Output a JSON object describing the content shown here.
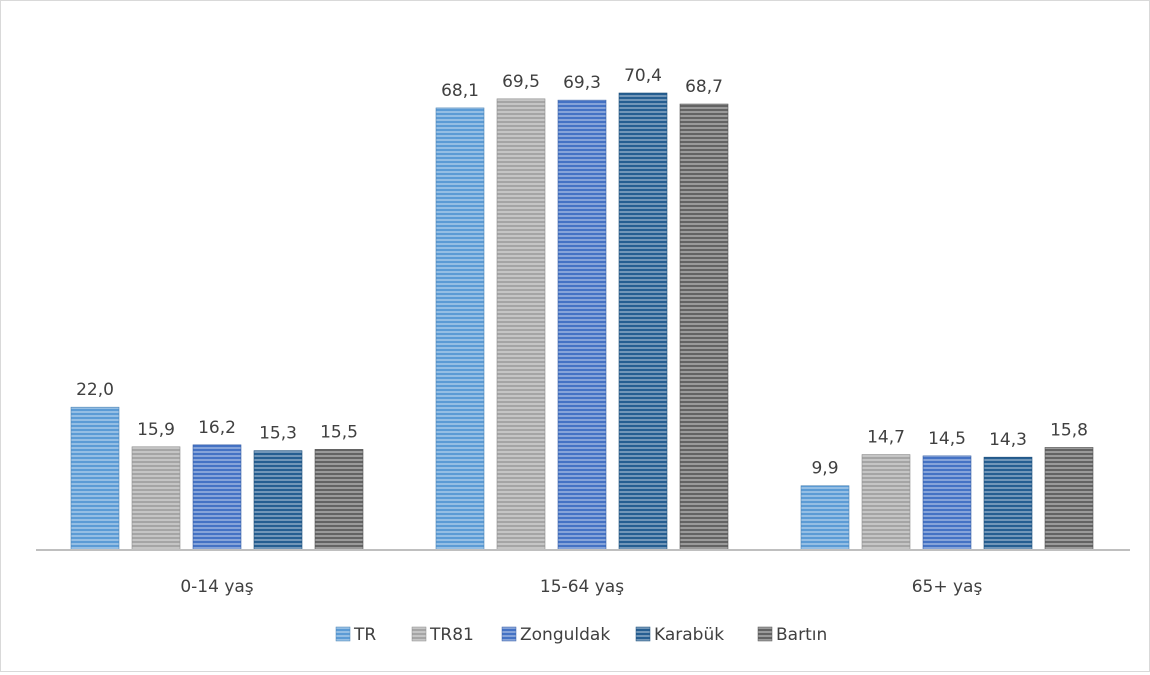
{
  "chart_data": {
    "type": "bar",
    "title": "",
    "xlabel": "",
    "ylabel": "",
    "categories": [
      "0-14 yaş",
      "15-64 yaş",
      "65+ yaş"
    ],
    "series": [
      {
        "name": "TR",
        "values": [
          22.0,
          68.1,
          9.9
        ],
        "labels": [
          "22,0",
          "68,1",
          "9,9"
        ],
        "color": "#5b9bd5",
        "pattern": "light-blue-stripes"
      },
      {
        "name": "TR81",
        "values": [
          15.9,
          69.5,
          14.7
        ],
        "labels": [
          "15,9",
          "69,5",
          "14,7"
        ],
        "color": "#a5a5a5",
        "pattern": "gray-stripes"
      },
      {
        "name": "Zonguldak",
        "values": [
          16.2,
          69.3,
          14.5
        ],
        "labels": [
          "16,2",
          "69,3",
          "14,5"
        ],
        "color": "#4472c4",
        "pattern": "blue-stripes"
      },
      {
        "name": "Karabük",
        "values": [
          15.3,
          70.4,
          14.3
        ],
        "labels": [
          "15,3",
          "70,4",
          "14,3"
        ],
        "color": "#255e91",
        "pattern": "dark-blue-stripes"
      },
      {
        "name": "Bartın",
        "values": [
          15.5,
          68.7,
          15.8
        ],
        "labels": [
          "15,5",
          "68,7",
          "15,8"
        ],
        "color": "#636363",
        "pattern": "dark-gray-stripes"
      }
    ],
    "ylim": [
      0,
      72
    ],
    "grid": false,
    "legend": "bottom-center"
  }
}
